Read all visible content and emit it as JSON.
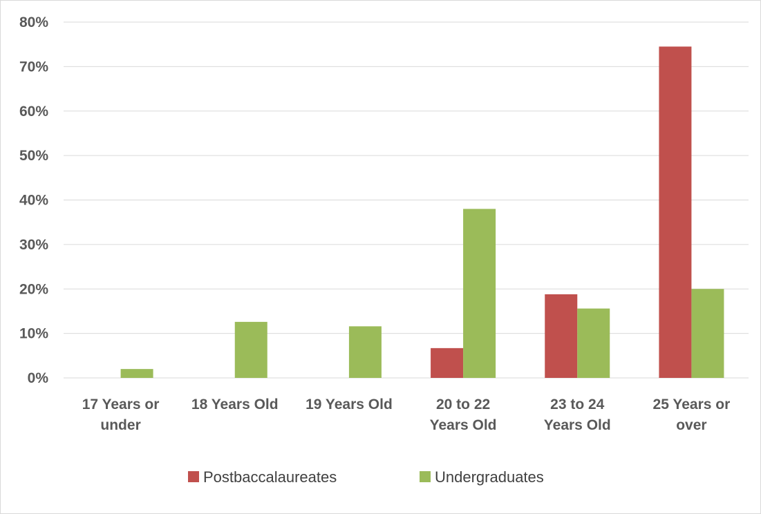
{
  "chart_data": {
    "type": "bar",
    "categories": [
      [
        "17 Years or",
        "under"
      ],
      [
        "18 Years Old"
      ],
      [
        "19 Years Old"
      ],
      [
        "20 to 22",
        "Years Old"
      ],
      [
        "23 to 24",
        "Years Old"
      ],
      [
        "25 Years or",
        "over"
      ]
    ],
    "series": [
      {
        "name": "Postbaccalaureates",
        "color": "#c0504d",
        "values": [
          0,
          0,
          0,
          6.7,
          18.8,
          74.5
        ]
      },
      {
        "name": "Undergraduates",
        "color": "#9bbb59",
        "values": [
          2.0,
          12.6,
          11.6,
          38.0,
          15.6,
          20.0
        ]
      }
    ],
    "yticks": [
      "0%",
      "10%",
      "20%",
      "30%",
      "40%",
      "50%",
      "60%",
      "70%",
      "80%"
    ],
    "ylim": [
      0,
      80
    ],
    "grid": true,
    "legend": "bottom"
  }
}
